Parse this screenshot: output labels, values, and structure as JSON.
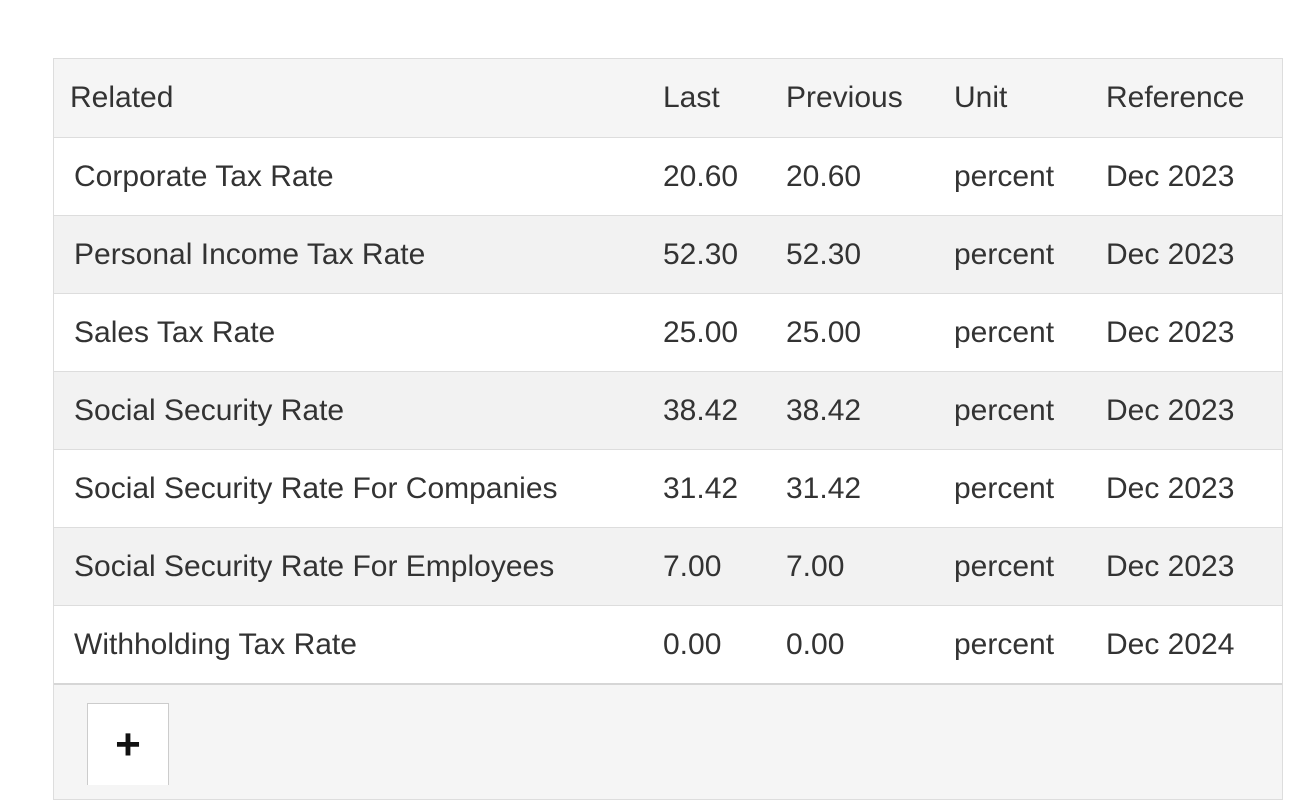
{
  "table": {
    "headers": {
      "related": "Related",
      "last": "Last",
      "previous": "Previous",
      "unit": "Unit",
      "reference": "Reference"
    },
    "rows": [
      {
        "related": "Corporate Tax Rate",
        "last": "20.60",
        "previous": "20.60",
        "unit": "percent",
        "reference": "Dec 2023"
      },
      {
        "related": "Personal Income Tax Rate",
        "last": "52.30",
        "previous": "52.30",
        "unit": "percent",
        "reference": "Dec 2023"
      },
      {
        "related": "Sales Tax Rate",
        "last": "25.00",
        "previous": "25.00",
        "unit": "percent",
        "reference": "Dec 2023"
      },
      {
        "related": "Social Security Rate",
        "last": "38.42",
        "previous": "38.42",
        "unit": "percent",
        "reference": "Dec 2023"
      },
      {
        "related": "Social Security Rate For Companies",
        "last": "31.42",
        "previous": "31.42",
        "unit": "percent",
        "reference": "Dec 2023"
      },
      {
        "related": "Social Security Rate For Employees",
        "last": "7.00",
        "previous": "7.00",
        "unit": "percent",
        "reference": "Dec 2023"
      },
      {
        "related": "Withholding Tax Rate",
        "last": "0.00",
        "previous": "0.00",
        "unit": "percent",
        "reference": "Dec 2024"
      }
    ]
  },
  "add_button": {
    "label": "+",
    "icon": "plus-icon"
  }
}
